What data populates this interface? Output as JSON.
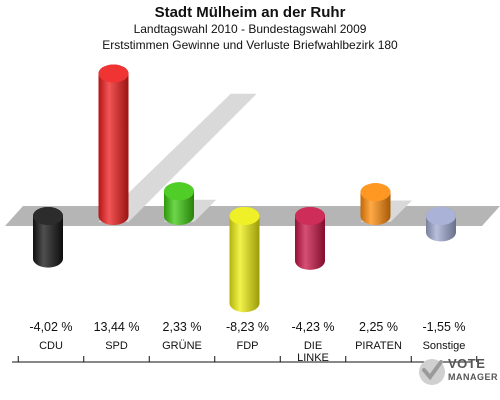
{
  "chart_data": {
    "type": "bar",
    "title": "Stadt Mülheim an der Ruhr",
    "subtitle_1": "Landtagswahl 2010 - Bundestagswahl 2009",
    "subtitle_2": "Erststimmen Gewinne und Verluste Briefwahlbezirk 180",
    "categories": [
      {
        "name": "CDU",
        "lines": [
          "CDU"
        ]
      },
      {
        "name": "SPD",
        "lines": [
          "SPD"
        ]
      },
      {
        "name": "GRÜNE",
        "lines": [
          "GRÜNE"
        ]
      },
      {
        "name": "FDP",
        "lines": [
          "FDP"
        ]
      },
      {
        "name": "DIE LINKE",
        "lines": [
          "DIE",
          "LINKE"
        ]
      },
      {
        "name": "PIRATEN",
        "lines": [
          "PIRATEN"
        ]
      },
      {
        "name": "Sonstige",
        "lines": [
          "Sonstige"
        ]
      }
    ],
    "values": [
      -4.02,
      13.44,
      2.33,
      -8.23,
      -4.23,
      2.25,
      -1.55
    ],
    "value_labels": [
      "-4,02 %",
      "13,44 %",
      "2,33 %",
      "-8,23 %",
      "-4,23 %",
      "2,25 %",
      "-1,55 %"
    ],
    "colors": [
      "#141414",
      "#ee1c1c",
      "#3cc80f",
      "#eeee10",
      "#c81446",
      "#ff8c0a",
      "#a0aad2"
    ],
    "ylim": [
      -8.23,
      13.44
    ],
    "grid": false,
    "legend": "none"
  },
  "branding": {
    "line_1": "VOTE",
    "line_2": "MANAGER",
    "colors": {
      "mark": "#9a9a9a",
      "text": "#555555"
    }
  }
}
